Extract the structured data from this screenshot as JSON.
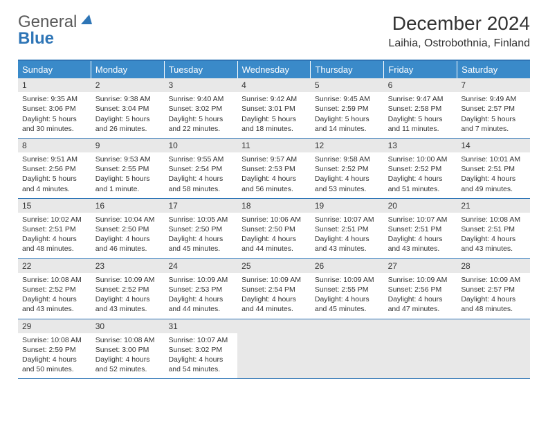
{
  "logo": {
    "part1": "General",
    "part2": "Blue"
  },
  "title": "December 2024",
  "location": "Laihia, Ostrobothnia, Finland",
  "colors": {
    "header_bg": "#3a8ac9",
    "header_text": "#ffffff",
    "border_blue": "#2e75b6",
    "daynum_bg": "#e8e8e8",
    "empty_bg": "#e8e8e8",
    "text": "#333333",
    "logo_grey": "#5a5a5a"
  },
  "day_headers": [
    "Sunday",
    "Monday",
    "Tuesday",
    "Wednesday",
    "Thursday",
    "Friday",
    "Saturday"
  ],
  "weeks": [
    [
      {
        "n": "1",
        "sr": "Sunrise: 9:35 AM",
        "ss": "Sunset: 3:06 PM",
        "d1": "Daylight: 5 hours",
        "d2": "and 30 minutes."
      },
      {
        "n": "2",
        "sr": "Sunrise: 9:38 AM",
        "ss": "Sunset: 3:04 PM",
        "d1": "Daylight: 5 hours",
        "d2": "and 26 minutes."
      },
      {
        "n": "3",
        "sr": "Sunrise: 9:40 AM",
        "ss": "Sunset: 3:02 PM",
        "d1": "Daylight: 5 hours",
        "d2": "and 22 minutes."
      },
      {
        "n": "4",
        "sr": "Sunrise: 9:42 AM",
        "ss": "Sunset: 3:01 PM",
        "d1": "Daylight: 5 hours",
        "d2": "and 18 minutes."
      },
      {
        "n": "5",
        "sr": "Sunrise: 9:45 AM",
        "ss": "Sunset: 2:59 PM",
        "d1": "Daylight: 5 hours",
        "d2": "and 14 minutes."
      },
      {
        "n": "6",
        "sr": "Sunrise: 9:47 AM",
        "ss": "Sunset: 2:58 PM",
        "d1": "Daylight: 5 hours",
        "d2": "and 11 minutes."
      },
      {
        "n": "7",
        "sr": "Sunrise: 9:49 AM",
        "ss": "Sunset: 2:57 PM",
        "d1": "Daylight: 5 hours",
        "d2": "and 7 minutes."
      }
    ],
    [
      {
        "n": "8",
        "sr": "Sunrise: 9:51 AM",
        "ss": "Sunset: 2:56 PM",
        "d1": "Daylight: 5 hours",
        "d2": "and 4 minutes."
      },
      {
        "n": "9",
        "sr": "Sunrise: 9:53 AM",
        "ss": "Sunset: 2:55 PM",
        "d1": "Daylight: 5 hours",
        "d2": "and 1 minute."
      },
      {
        "n": "10",
        "sr": "Sunrise: 9:55 AM",
        "ss": "Sunset: 2:54 PM",
        "d1": "Daylight: 4 hours",
        "d2": "and 58 minutes."
      },
      {
        "n": "11",
        "sr": "Sunrise: 9:57 AM",
        "ss": "Sunset: 2:53 PM",
        "d1": "Daylight: 4 hours",
        "d2": "and 56 minutes."
      },
      {
        "n": "12",
        "sr": "Sunrise: 9:58 AM",
        "ss": "Sunset: 2:52 PM",
        "d1": "Daylight: 4 hours",
        "d2": "and 53 minutes."
      },
      {
        "n": "13",
        "sr": "Sunrise: 10:00 AM",
        "ss": "Sunset: 2:52 PM",
        "d1": "Daylight: 4 hours",
        "d2": "and 51 minutes."
      },
      {
        "n": "14",
        "sr": "Sunrise: 10:01 AM",
        "ss": "Sunset: 2:51 PM",
        "d1": "Daylight: 4 hours",
        "d2": "and 49 minutes."
      }
    ],
    [
      {
        "n": "15",
        "sr": "Sunrise: 10:02 AM",
        "ss": "Sunset: 2:51 PM",
        "d1": "Daylight: 4 hours",
        "d2": "and 48 minutes."
      },
      {
        "n": "16",
        "sr": "Sunrise: 10:04 AM",
        "ss": "Sunset: 2:50 PM",
        "d1": "Daylight: 4 hours",
        "d2": "and 46 minutes."
      },
      {
        "n": "17",
        "sr": "Sunrise: 10:05 AM",
        "ss": "Sunset: 2:50 PM",
        "d1": "Daylight: 4 hours",
        "d2": "and 45 minutes."
      },
      {
        "n": "18",
        "sr": "Sunrise: 10:06 AM",
        "ss": "Sunset: 2:50 PM",
        "d1": "Daylight: 4 hours",
        "d2": "and 44 minutes."
      },
      {
        "n": "19",
        "sr": "Sunrise: 10:07 AM",
        "ss": "Sunset: 2:51 PM",
        "d1": "Daylight: 4 hours",
        "d2": "and 43 minutes."
      },
      {
        "n": "20",
        "sr": "Sunrise: 10:07 AM",
        "ss": "Sunset: 2:51 PM",
        "d1": "Daylight: 4 hours",
        "d2": "and 43 minutes."
      },
      {
        "n": "21",
        "sr": "Sunrise: 10:08 AM",
        "ss": "Sunset: 2:51 PM",
        "d1": "Daylight: 4 hours",
        "d2": "and 43 minutes."
      }
    ],
    [
      {
        "n": "22",
        "sr": "Sunrise: 10:08 AM",
        "ss": "Sunset: 2:52 PM",
        "d1": "Daylight: 4 hours",
        "d2": "and 43 minutes."
      },
      {
        "n": "23",
        "sr": "Sunrise: 10:09 AM",
        "ss": "Sunset: 2:52 PM",
        "d1": "Daylight: 4 hours",
        "d2": "and 43 minutes."
      },
      {
        "n": "24",
        "sr": "Sunrise: 10:09 AM",
        "ss": "Sunset: 2:53 PM",
        "d1": "Daylight: 4 hours",
        "d2": "and 44 minutes."
      },
      {
        "n": "25",
        "sr": "Sunrise: 10:09 AM",
        "ss": "Sunset: 2:54 PM",
        "d1": "Daylight: 4 hours",
        "d2": "and 44 minutes."
      },
      {
        "n": "26",
        "sr": "Sunrise: 10:09 AM",
        "ss": "Sunset: 2:55 PM",
        "d1": "Daylight: 4 hours",
        "d2": "and 45 minutes."
      },
      {
        "n": "27",
        "sr": "Sunrise: 10:09 AM",
        "ss": "Sunset: 2:56 PM",
        "d1": "Daylight: 4 hours",
        "d2": "and 47 minutes."
      },
      {
        "n": "28",
        "sr": "Sunrise: 10:09 AM",
        "ss": "Sunset: 2:57 PM",
        "d1": "Daylight: 4 hours",
        "d2": "and 48 minutes."
      }
    ],
    [
      {
        "n": "29",
        "sr": "Sunrise: 10:08 AM",
        "ss": "Sunset: 2:59 PM",
        "d1": "Daylight: 4 hours",
        "d2": "and 50 minutes."
      },
      {
        "n": "30",
        "sr": "Sunrise: 10:08 AM",
        "ss": "Sunset: 3:00 PM",
        "d1": "Daylight: 4 hours",
        "d2": "and 52 minutes."
      },
      {
        "n": "31",
        "sr": "Sunrise: 10:07 AM",
        "ss": "Sunset: 3:02 PM",
        "d1": "Daylight: 4 hours",
        "d2": "and 54 minutes."
      },
      {
        "empty": true
      },
      {
        "empty": true
      },
      {
        "empty": true
      },
      {
        "empty": true
      }
    ]
  ]
}
